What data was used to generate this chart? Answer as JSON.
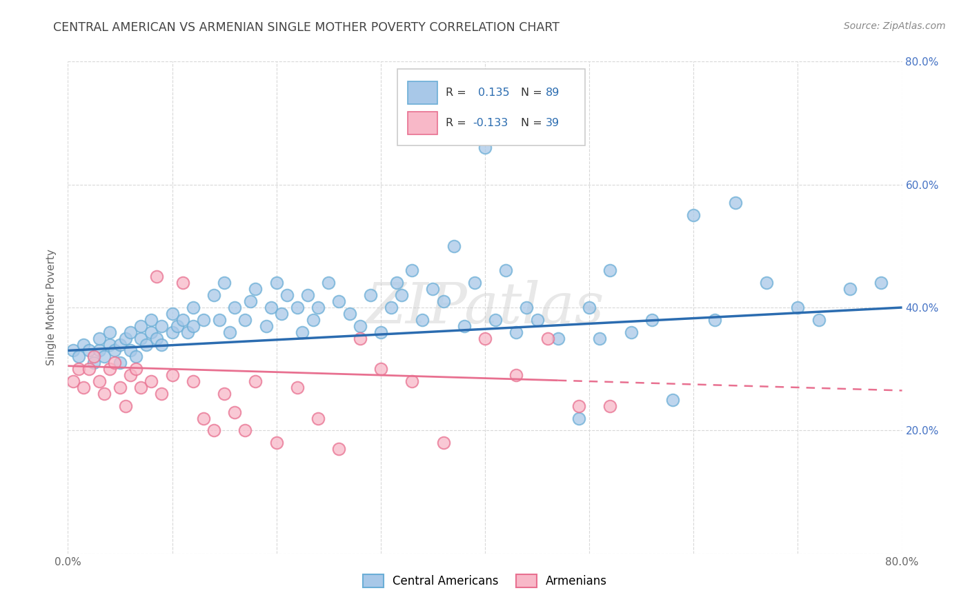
{
  "title": "CENTRAL AMERICAN VS ARMENIAN SINGLE MOTHER POVERTY CORRELATION CHART",
  "source": "Source: ZipAtlas.com",
  "ylabel": "Single Mother Poverty",
  "xlim": [
    0.0,
    0.8
  ],
  "ylim": [
    0.0,
    0.8
  ],
  "blue_scatter_x": [
    0.005,
    0.01,
    0.015,
    0.02,
    0.025,
    0.03,
    0.03,
    0.035,
    0.04,
    0.04,
    0.045,
    0.05,
    0.05,
    0.055,
    0.06,
    0.06,
    0.065,
    0.07,
    0.07,
    0.075,
    0.08,
    0.08,
    0.085,
    0.09,
    0.09,
    0.1,
    0.1,
    0.105,
    0.11,
    0.115,
    0.12,
    0.12,
    0.13,
    0.14,
    0.145,
    0.15,
    0.155,
    0.16,
    0.17,
    0.175,
    0.18,
    0.19,
    0.195,
    0.2,
    0.205,
    0.21,
    0.22,
    0.225,
    0.23,
    0.235,
    0.24,
    0.25,
    0.26,
    0.27,
    0.28,
    0.29,
    0.3,
    0.31,
    0.315,
    0.32,
    0.33,
    0.34,
    0.35,
    0.36,
    0.37,
    0.38,
    0.39,
    0.4,
    0.41,
    0.42,
    0.43,
    0.44,
    0.45,
    0.47,
    0.49,
    0.5,
    0.51,
    0.52,
    0.54,
    0.56,
    0.58,
    0.6,
    0.62,
    0.64,
    0.67,
    0.7,
    0.72,
    0.75,
    0.78
  ],
  "blue_scatter_y": [
    0.33,
    0.32,
    0.34,
    0.33,
    0.31,
    0.33,
    0.35,
    0.32,
    0.34,
    0.36,
    0.33,
    0.31,
    0.34,
    0.35,
    0.33,
    0.36,
    0.32,
    0.35,
    0.37,
    0.34,
    0.36,
    0.38,
    0.35,
    0.34,
    0.37,
    0.36,
    0.39,
    0.37,
    0.38,
    0.36,
    0.4,
    0.37,
    0.38,
    0.42,
    0.38,
    0.44,
    0.36,
    0.4,
    0.38,
    0.41,
    0.43,
    0.37,
    0.4,
    0.44,
    0.39,
    0.42,
    0.4,
    0.36,
    0.42,
    0.38,
    0.4,
    0.44,
    0.41,
    0.39,
    0.37,
    0.42,
    0.36,
    0.4,
    0.44,
    0.42,
    0.46,
    0.38,
    0.43,
    0.41,
    0.5,
    0.37,
    0.44,
    0.66,
    0.38,
    0.46,
    0.36,
    0.4,
    0.38,
    0.35,
    0.22,
    0.4,
    0.35,
    0.46,
    0.36,
    0.38,
    0.25,
    0.55,
    0.38,
    0.57,
    0.44,
    0.4,
    0.38,
    0.43,
    0.44
  ],
  "pink_scatter_x": [
    0.005,
    0.01,
    0.015,
    0.02,
    0.025,
    0.03,
    0.035,
    0.04,
    0.045,
    0.05,
    0.055,
    0.06,
    0.065,
    0.07,
    0.08,
    0.085,
    0.09,
    0.1,
    0.11,
    0.12,
    0.13,
    0.14,
    0.15,
    0.16,
    0.17,
    0.18,
    0.2,
    0.22,
    0.24,
    0.26,
    0.28,
    0.3,
    0.33,
    0.36,
    0.4,
    0.43,
    0.46,
    0.49,
    0.52
  ],
  "pink_scatter_y": [
    0.28,
    0.3,
    0.27,
    0.3,
    0.32,
    0.28,
    0.26,
    0.3,
    0.31,
    0.27,
    0.24,
    0.29,
    0.3,
    0.27,
    0.28,
    0.45,
    0.26,
    0.29,
    0.44,
    0.28,
    0.22,
    0.2,
    0.26,
    0.23,
    0.2,
    0.28,
    0.18,
    0.27,
    0.22,
    0.17,
    0.35,
    0.3,
    0.28,
    0.18,
    0.35,
    0.29,
    0.35,
    0.24,
    0.24
  ],
  "blue_line_color": "#2b6cb0",
  "pink_line_color": "#e87090",
  "blue_scatter_face": "#a8c8e8",
  "blue_scatter_edge": "#6baed6",
  "pink_scatter_face": "#f8b8c8",
  "pink_scatter_edge": "#e87090",
  "background_color": "#ffffff",
  "grid_color": "#d8d8d8",
  "ytick_color": "#4472c4",
  "xtick_color": "#666666",
  "title_color": "#444444",
  "source_color": "#888888",
  "ylabel_color": "#666666",
  "watermark": "ZIPatlas"
}
